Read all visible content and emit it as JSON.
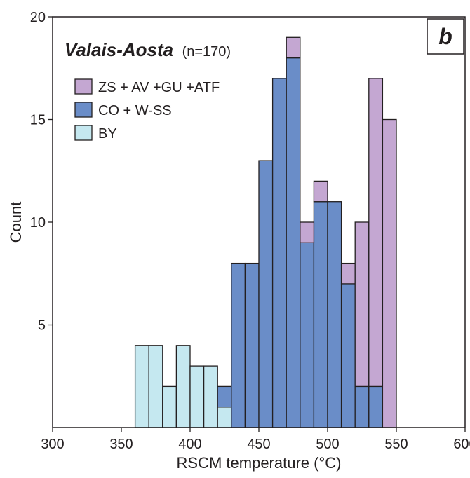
{
  "chart_data": {
    "type": "bar",
    "title": "Valais-Aosta",
    "subtitle": "(n=170)",
    "panel_label": "b",
    "xlabel": "RSCM temperature (°C)",
    "ylabel": "Count",
    "xlim": [
      300,
      600
    ],
    "ylim": [
      0,
      20
    ],
    "xticks": [
      300,
      350,
      400,
      450,
      500,
      550,
      600
    ],
    "yticks": [
      5,
      10,
      15,
      20
    ],
    "bin_width": 10,
    "legend_position": "top-left",
    "series": [
      {
        "name": "BY",
        "color": "#c5e8f0",
        "bins": [
          {
            "x": 360,
            "value": 4
          },
          {
            "x": 370,
            "value": 4
          },
          {
            "x": 380,
            "value": 2
          },
          {
            "x": 390,
            "value": 4
          },
          {
            "x": 400,
            "value": 3
          },
          {
            "x": 410,
            "value": 3
          },
          {
            "x": 420,
            "value": 1
          }
        ]
      },
      {
        "name": "CO + W-SS",
        "color": "#6a8dc8",
        "bins": [
          {
            "x": 420,
            "value": 1
          },
          {
            "x": 430,
            "value": 8
          },
          {
            "x": 440,
            "value": 8
          },
          {
            "x": 450,
            "value": 13
          },
          {
            "x": 460,
            "value": 17
          },
          {
            "x": 470,
            "value": 18
          },
          {
            "x": 480,
            "value": 9
          },
          {
            "x": 490,
            "value": 11
          },
          {
            "x": 500,
            "value": 11
          },
          {
            "x": 510,
            "value": 7
          },
          {
            "x": 520,
            "value": 2
          },
          {
            "x": 530,
            "value": 2
          }
        ]
      },
      {
        "name": "ZS + AV +GU +ATF",
        "color": "#c4a7d2",
        "bins": [
          {
            "x": 470,
            "value": 1
          },
          {
            "x": 480,
            "value": 1
          },
          {
            "x": 490,
            "value": 1
          },
          {
            "x": 510,
            "value": 1
          },
          {
            "x": 520,
            "value": 8
          },
          {
            "x": 530,
            "value": 15
          },
          {
            "x": 540,
            "value": 15
          }
        ]
      }
    ],
    "legend_order": [
      "ZS + AV +GU +ATF",
      "CO + W-SS",
      "BY"
    ]
  }
}
